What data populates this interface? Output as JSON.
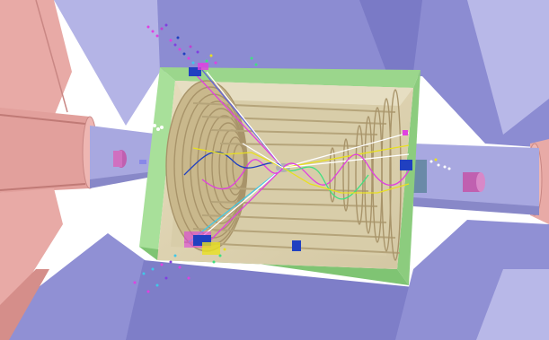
{
  "scene": {
    "colors": {
      "background": "#ffffff",
      "magnet": "#8c8cd2",
      "magnet_light": "#b4b4e6",
      "magnet_dark": "#6e6eb4",
      "calorimeter": "#e8aaa6",
      "calorimeter_dark": "#d08c88",
      "beampipe": "#a8a8e0",
      "detector_frame": "#9bd68c",
      "detector_frame_dark": "#6fb463",
      "detector_inner": "#ddd3b3",
      "detector_rings": "#b8a67a",
      "track_magenta": "#e040e0",
      "track_yellow": "#e8e020",
      "track_white": "#ffffff",
      "track_green": "#40e080",
      "track_blue": "#2040c0",
      "track_cyan": "#40c8e8",
      "track_purple": "#8040e0"
    }
  }
}
